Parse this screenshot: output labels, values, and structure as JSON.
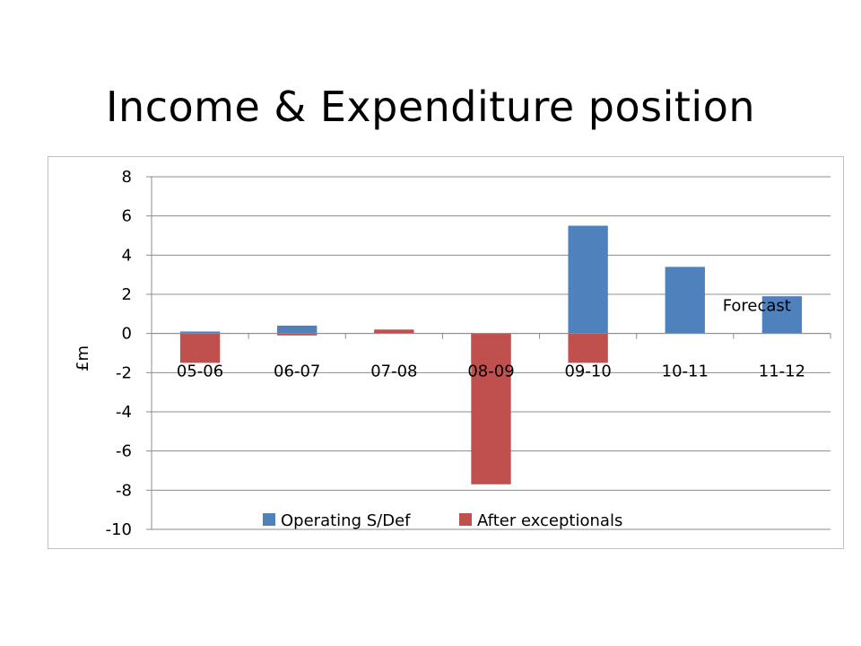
{
  "slide": {
    "title": "Income & Expenditure position"
  },
  "chart_data": {
    "type": "bar",
    "stacked": false,
    "overlapped": true,
    "categories": [
      "05-06",
      "06-07",
      "07-08",
      "08-09",
      "09-10",
      "10-11",
      "11-12"
    ],
    "series": [
      {
        "name": "Operating S/Def",
        "color": "#4F81BD",
        "values": [
          0.1,
          0.4,
          0.1,
          -1.5,
          5.5,
          3.4,
          1.9
        ]
      },
      {
        "name": "After exceptionals",
        "color": "#C0504D",
        "values": [
          -1.5,
          -0.1,
          0.2,
          -7.7,
          -1.5,
          0,
          0
        ]
      }
    ],
    "title": "",
    "xlabel": "",
    "ylabel": "£m",
    "ylim": [
      -10,
      8
    ],
    "yticks": [
      8,
      6,
      4,
      2,
      0,
      -2,
      -4,
      -6,
      -8,
      -10
    ],
    "grid": true,
    "legend": "bottom",
    "annotations": [
      {
        "text": "Forecast",
        "category": "10-11",
        "y": 1.3
      }
    ]
  }
}
